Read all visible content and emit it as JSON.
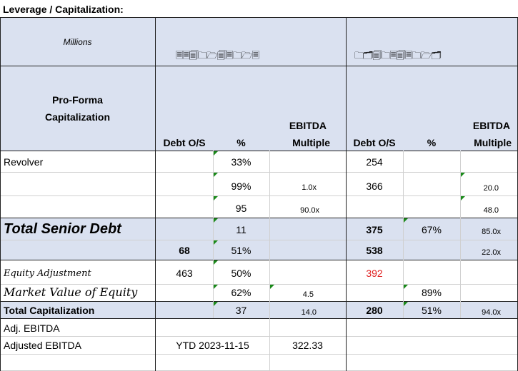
{
  "title": "Leverage / Capitalization:",
  "header": {
    "units": "Millions",
    "left_glyphs": "🗏🗏🗐🗀🗁🗐🗏🗀🗁🗏",
    "right_glyphs": "🗀🗂🗐🗀🗏🗐🗏🗀🗁🗂",
    "pro_forma_line1": "Pro-Forma",
    "pro_forma_line2": "Capitalization",
    "col_debt": "Debt O/S",
    "col_pct": "%",
    "col_ebitda_line1": "EBITDA",
    "col_ebitda_line2": "Multiple"
  },
  "rows": {
    "revolver": {
      "label": "Revolver",
      "pct": "33%",
      "r_debt": "254"
    },
    "row2": {
      "pct": "99%",
      "mult": "1.0x",
      "r_debt": "366",
      "r_mult": "20.0"
    },
    "row3": {
      "pct": "95",
      "mult": "90.0x",
      "r_mult": "48.0"
    },
    "senior": {
      "label": "Total Senior Debt",
      "pct": "11",
      "r_debt": "375",
      "r_pct": "67%",
      "r_mult": "85.0x"
    },
    "row5": {
      "debt": "68",
      "pct": "51%",
      "r_debt": "538",
      "r_mult": "22.0x"
    },
    "equity_adj": {
      "label": "Equity Adjustment",
      "debt": "463",
      "pct": "50%",
      "r_debt": "392"
    },
    "market": {
      "label": "Market Value of Equity",
      "pct": "62%",
      "mult": "4.5",
      "r_pct": "89%"
    },
    "total_cap": {
      "label": "Total Capitalization",
      "pct": "37",
      "mult": "14.0",
      "r_debt": "280",
      "r_pct": "51%",
      "r_mult": "94.0x"
    },
    "adj_ebitda": {
      "label": "Adj. EBITDA"
    },
    "adjusted_ebitda": {
      "label": "Adjusted EBITDA",
      "date": "YTD 2023-11-15",
      "value": "322.33"
    }
  },
  "colors": {
    "band": "#dae1f0",
    "red_value": "#e02020",
    "marker": "#1a8a1a"
  }
}
